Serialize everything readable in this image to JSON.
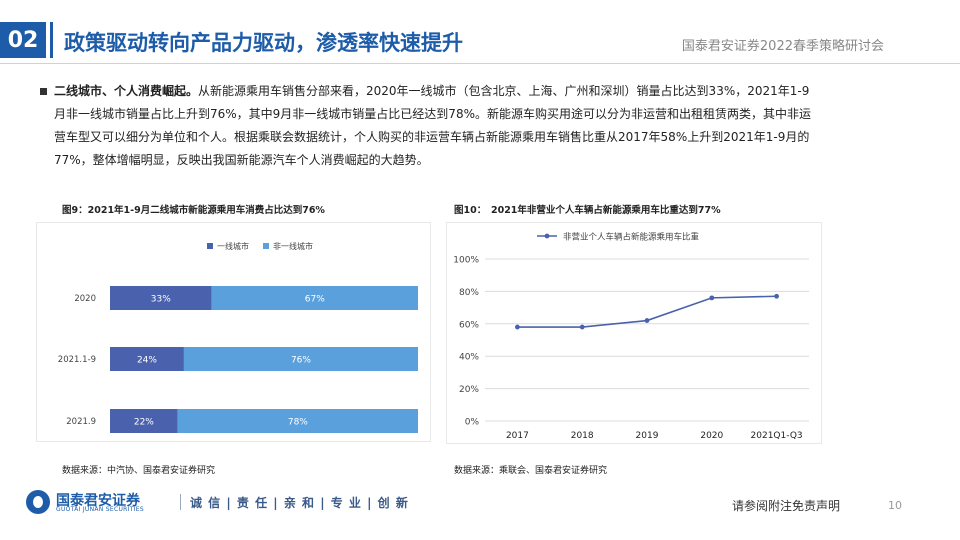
{
  "header": {
    "section_number": "02",
    "title": "政策驱动转向产品力驱动，渗透率快速提升",
    "conference": "国泰君安证券2022春季策略研讨会"
  },
  "body": {
    "bold_lead": "二线城市、个人消费崛起。",
    "text": "从新能源乘用车销售分部来看，2020年一线城市（包含北京、上海、广州和深圳）销量占比达到33%，2021年1-9月非一线城市销量占比上升到76%，其中9月非一线城市销量占比已经达到78%。新能源车购买用途可以分为非运营和出租租赁两类，其中非运营车型又可以细分为单位和个人。根据乘联会数据统计，个人购买的非运营车辆占新能源乘用车销售比重从2017年58%上升到2021年1-9月的77%，整体增幅明显，反映出我国新能源汽车个人消费崛起的大趋势。"
  },
  "figure9": {
    "caption": "图9：2021年1-9月二线城市新能源乘用车消费占比达到76%",
    "source": "数据来源：中汽协、国泰君安证券研究"
  },
  "figure10": {
    "caption": "图10：　2021年非营业个人车辆占新能源乘用车比重达到77%",
    "source": "数据来源：乘联会、国泰君安证券研究"
  },
  "colors": {
    "brand": "#1d5ca8",
    "series_dark": "#4a62ad",
    "series_light": "#5aa0dc",
    "line": "#4a62ad"
  },
  "chart_data": [
    {
      "type": "bar",
      "orientation": "horizontal",
      "stacked": true,
      "categories": [
        "2020",
        "2021.1-9",
        "2021.9"
      ],
      "series": [
        {
          "name": "一线城市",
          "values": [
            33,
            24,
            22
          ],
          "labels": [
            "33%",
            "24%",
            "22%"
          ]
        },
        {
          "name": "非一线城市",
          "values": [
            67,
            76,
            78
          ],
          "labels": [
            "67%",
            "76%",
            "78%"
          ]
        }
      ],
      "legend": "top"
    },
    {
      "type": "line",
      "categories": [
        "2017",
        "2018",
        "2019",
        "2020",
        "2021Q1-Q3"
      ],
      "series": [
        {
          "name": "非营业个人车辆占新能源乘用车比重",
          "values": [
            58,
            58,
            62,
            76,
            77
          ]
        }
      ],
      "ylim": [
        0,
        100
      ],
      "yticks": [
        "0%",
        "20%",
        "40%",
        "60%",
        "80%",
        "100%"
      ],
      "grid": true,
      "legend": "top"
    }
  ],
  "footer": {
    "logo_cn": "国泰君安证券",
    "logo_en": "GUOTAI JUNAN SECURITIES",
    "slogan": "诚 信 | 责 任 | 亲 和 | 专 业 | 创 新",
    "disclaimer": "请参阅附注免责声明",
    "page": "10"
  }
}
